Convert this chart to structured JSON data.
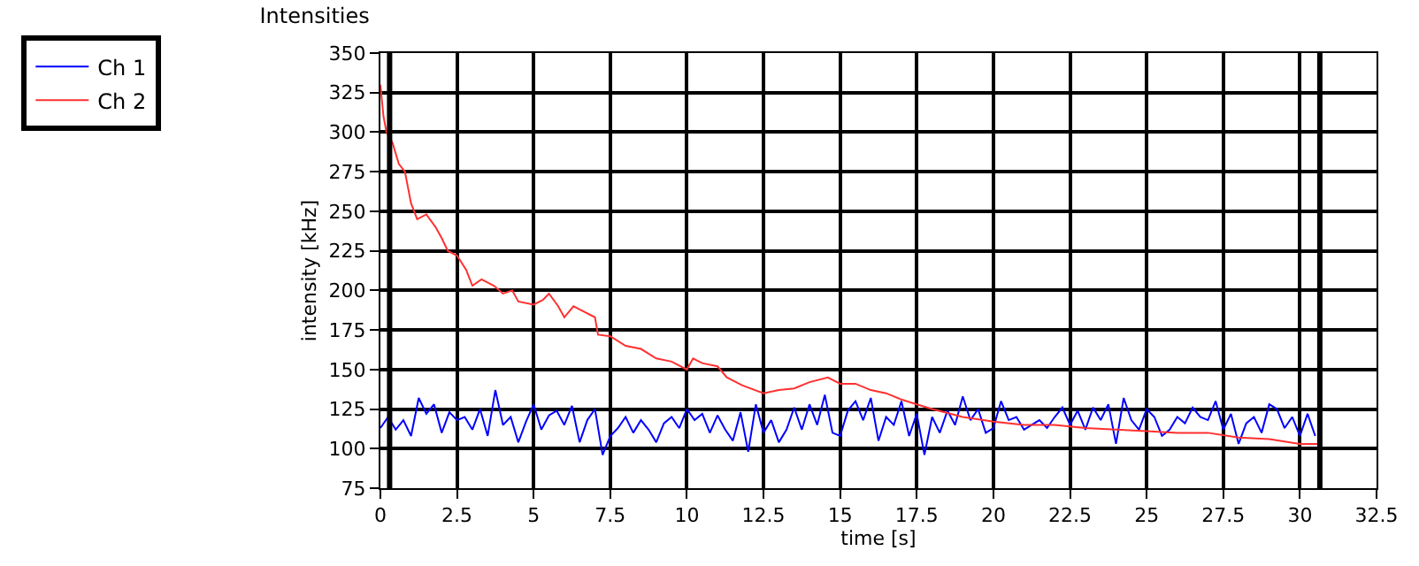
{
  "chart_data": {
    "type": "line",
    "title": "Intensities",
    "xlabel": "time [s]",
    "ylabel": "intensity [kHz]",
    "xlim": [
      0,
      32.5
    ],
    "xticks": [
      0,
      2.5,
      5,
      7.5,
      10,
      12.5,
      15,
      17.5,
      20,
      22.5,
      25,
      27.5,
      30,
      32.5
    ],
    "ylim": [
      75,
      350
    ],
    "yticks": [
      75,
      100,
      125,
      150,
      175,
      200,
      225,
      250,
      275,
      300,
      325,
      350
    ],
    "grid": true,
    "legend": "top left",
    "line_style": "solid",
    "marker": "none",
    "ref_lines": [
      {
        "axis": "x",
        "value": 0.3,
        "color": "#000000"
      },
      {
        "axis": "x",
        "value": 30.65,
        "color": "#000000"
      }
    ],
    "series": [
      {
        "name": "Ch 1",
        "color": "#0000ff",
        "x": [
          0,
          0.25,
          0.5,
          0.75,
          1,
          1.25,
          1.5,
          1.75,
          2,
          2.25,
          2.5,
          2.75,
          3,
          3.25,
          3.5,
          3.75,
          4,
          4.25,
          4.5,
          4.75,
          5,
          5.25,
          5.5,
          5.75,
          6,
          6.25,
          6.5,
          6.75,
          7,
          7.25,
          7.5,
          7.75,
          8,
          8.25,
          8.5,
          8.75,
          9,
          9.25,
          9.5,
          9.75,
          10,
          10.25,
          10.5,
          10.75,
          11,
          11.25,
          11.5,
          11.75,
          12,
          12.25,
          12.5,
          12.75,
          13,
          13.25,
          13.5,
          13.75,
          14,
          14.25,
          14.5,
          14.75,
          15,
          15.25,
          15.5,
          15.75,
          16,
          16.25,
          16.5,
          16.75,
          17,
          17.25,
          17.5,
          17.75,
          18,
          18.25,
          18.5,
          18.75,
          19,
          19.25,
          19.5,
          19.75,
          20,
          20.25,
          20.5,
          20.75,
          21,
          21.25,
          21.5,
          21.75,
          22,
          22.25,
          22.5,
          22.75,
          23,
          23.25,
          23.5,
          23.75,
          24,
          24.25,
          24.5,
          24.75,
          25,
          25.25,
          25.5,
          25.75,
          26,
          26.25,
          26.5,
          26.75,
          27,
          27.25,
          27.5,
          27.75,
          28,
          28.25,
          28.5,
          28.75,
          29,
          29.25,
          29.5,
          29.75,
          30,
          30.25,
          30.5
        ],
        "values": [
          113,
          120,
          112,
          118,
          108,
          132,
          122,
          128,
          110,
          123,
          118,
          120,
          112,
          125,
          108,
          137,
          115,
          120,
          104,
          117,
          128,
          112,
          121,
          124,
          115,
          127,
          104,
          118,
          125,
          96,
          108,
          113,
          120,
          110,
          118,
          112,
          104,
          116,
          120,
          113,
          125,
          118,
          122,
          110,
          121,
          112,
          105,
          123,
          98,
          128,
          110,
          118,
          104,
          112,
          126,
          112,
          128,
          115,
          134,
          110,
          108,
          124,
          130,
          118,
          132,
          105,
          120,
          115,
          130,
          108,
          122,
          96,
          120,
          110,
          124,
          115,
          133,
          118,
          125,
          110,
          113,
          130,
          118,
          120,
          112,
          115,
          118,
          113,
          120,
          126,
          115,
          124,
          112,
          126,
          118,
          128,
          103,
          132,
          118,
          112,
          125,
          120,
          108,
          112,
          120,
          116,
          126,
          120,
          118,
          130,
          112,
          122,
          103,
          116,
          120,
          110,
          128,
          125,
          113,
          120,
          108,
          122,
          108
        ]
      },
      {
        "name": "Ch 2",
        "color": "#ff3030",
        "x": [
          0,
          0.1,
          0.2,
          0.4,
          0.6,
          0.8,
          1.0,
          1.2,
          1.5,
          1.8,
          2.0,
          2.2,
          2.5,
          2.8,
          3.0,
          3.3,
          3.7,
          4.0,
          4.3,
          4.5,
          5.0,
          5.3,
          5.5,
          5.8,
          6.0,
          6.3,
          6.5,
          7.0,
          7.1,
          7.5,
          8.0,
          8.5,
          9.0,
          9.5,
          10.0,
          10.2,
          10.5,
          11.0,
          11.3,
          11.8,
          12.5,
          13.0,
          13.5,
          14.0,
          14.6,
          15.0,
          15.5,
          16.0,
          16.5,
          17.0,
          17.5,
          18.0,
          19.0,
          20.0,
          21.0,
          22.0,
          23.0,
          24.0,
          25.0,
          26.0,
          27.0,
          28.0,
          29.0,
          30.0,
          30.6
        ],
        "values": [
          330,
          310,
          300,
          293,
          280,
          275,
          255,
          245,
          248,
          240,
          233,
          225,
          222,
          213,
          203,
          207,
          203,
          198,
          200,
          193,
          191,
          194,
          198,
          190,
          183,
          190,
          188,
          183,
          172,
          171,
          165,
          163,
          157,
          155,
          150,
          157,
          154,
          152,
          145,
          140,
          135,
          137,
          138,
          142,
          145,
          141,
          141,
          137,
          135,
          131,
          128,
          125,
          120,
          117,
          115,
          115,
          113,
          112,
          111,
          110,
          110,
          107,
          106,
          103,
          103
        ]
      }
    ]
  }
}
